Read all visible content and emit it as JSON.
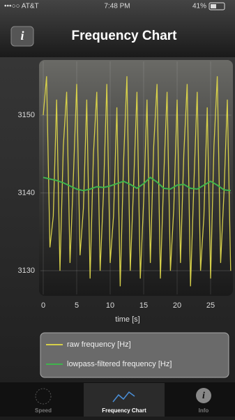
{
  "status_bar": {
    "carrier": "•••○○ AT&T",
    "time": "7:48 PM",
    "battery": "41%"
  },
  "nav_bar": {
    "title": "Frequency Chart"
  },
  "chart_data": {
    "type": "line",
    "xlabel": "time [s]",
    "xlim": [
      0,
      28
    ],
    "xticks": [
      0,
      5,
      10,
      15,
      20,
      25
    ],
    "ylim": [
      3127,
      3157
    ],
    "yticks": [
      3130,
      3140,
      3150
    ],
    "grid": true,
    "series": [
      {
        "name": "raw frequency [Hz]",
        "color": "#d6cf4a",
        "x": [
          0,
          0.5,
          1,
          1.5,
          2,
          2.5,
          3,
          3.5,
          4,
          4.5,
          5,
          5.5,
          6,
          6.5,
          7,
          7.5,
          8,
          8.5,
          9,
          9.5,
          10,
          10.5,
          11,
          11.5,
          12,
          12.5,
          13,
          13.5,
          14,
          14.5,
          15,
          15.5,
          16,
          16.5,
          17,
          17.5,
          18,
          18.5,
          19,
          19.5,
          20,
          20.5,
          21,
          21.5,
          22,
          22.5,
          23,
          23.5,
          24,
          24.5,
          25,
          25.5,
          26,
          26.5,
          27,
          27.5,
          28
        ],
        "values": [
          3150,
          3155,
          3133,
          3137,
          3152,
          3130,
          3146,
          3153,
          3131,
          3142,
          3154,
          3132,
          3138,
          3152,
          3129,
          3145,
          3153,
          3130,
          3140,
          3154,
          3131,
          3137,
          3151,
          3128,
          3144,
          3155,
          3130,
          3141,
          3153,
          3129,
          3139,
          3152,
          3131,
          3146,
          3154,
          3129,
          3142,
          3153,
          3130,
          3138,
          3152,
          3131,
          3145,
          3154,
          3128,
          3141,
          3153,
          3130,
          3137,
          3151,
          3129,
          3146,
          3155,
          3131,
          3140,
          3152,
          3130
        ]
      },
      {
        "name": "lowpass-filtered frequency [Hz]",
        "color": "#3fb44c",
        "x": [
          0,
          1,
          2,
          3,
          4,
          5,
          6,
          7,
          8,
          9,
          10,
          11,
          12,
          13,
          14,
          15,
          16,
          17,
          18,
          19,
          20,
          21,
          22,
          23,
          24,
          25,
          26,
          27,
          28
        ],
        "values": [
          3142,
          3141.8,
          3141.6,
          3141.3,
          3140.9,
          3140.5,
          3140.3,
          3140.5,
          3140.8,
          3140.7,
          3140.9,
          3141.2,
          3141.5,
          3141.1,
          3140.6,
          3141.2,
          3142,
          3141.4,
          3140.6,
          3140.5,
          3141,
          3141.1,
          3140.6,
          3140.5,
          3141,
          3141.5,
          3141,
          3140.4,
          3140.3
        ]
      }
    ]
  },
  "tab_bar": {
    "tabs": [
      "Speed",
      "Frequency Chart",
      "Info"
    ]
  }
}
